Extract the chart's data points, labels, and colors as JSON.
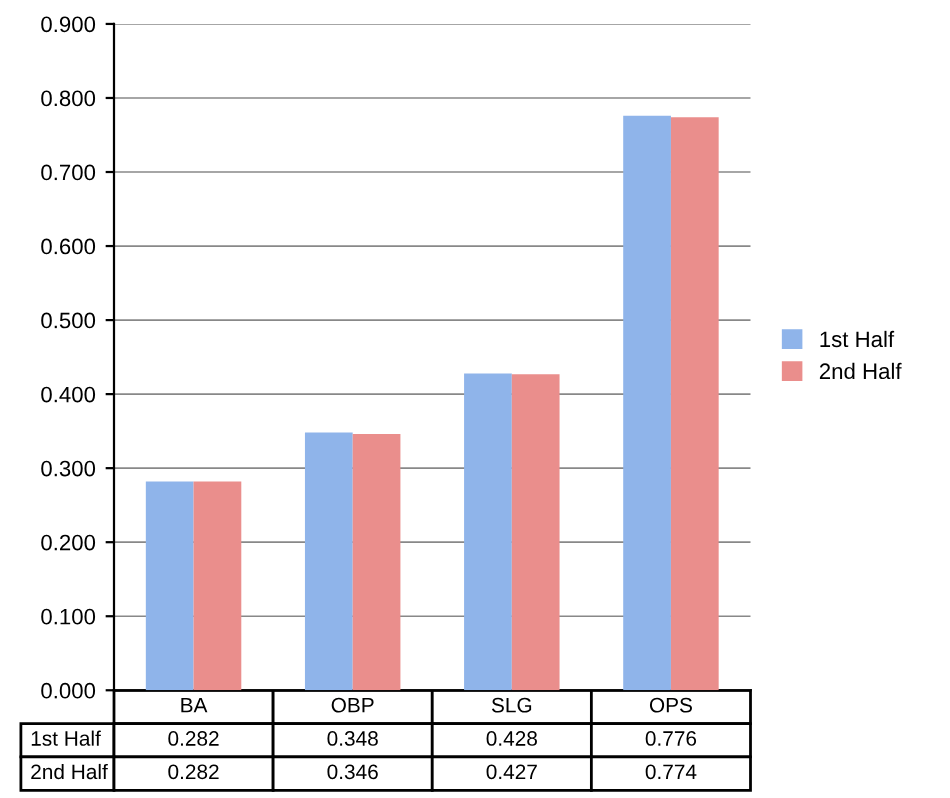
{
  "chart_data": {
    "type": "bar",
    "categories": [
      "BA",
      "OBP",
      "SLG",
      "OPS"
    ],
    "series": [
      {
        "name": "1st Half",
        "color": "#8fb4ea",
        "values": [
          0.282,
          0.348,
          0.428,
          0.776
        ]
      },
      {
        "name": "2nd Half",
        "color": "#ea8e8c",
        "values": [
          0.282,
          0.346,
          0.427,
          0.774
        ]
      }
    ],
    "ylim": [
      0,
      0.9
    ],
    "yticks": [
      {
        "value": 0,
        "label": "0.000"
      },
      {
        "value": 0.1,
        "label": "0.100"
      },
      {
        "value": 0.2,
        "label": "0.200"
      },
      {
        "value": 0.3,
        "label": "0.300"
      },
      {
        "value": 0.4,
        "label": "0.400"
      },
      {
        "value": 0.5,
        "label": "0.500"
      },
      {
        "value": 0.6,
        "label": "0.600"
      },
      {
        "value": 0.7,
        "label": "0.700"
      },
      {
        "value": 0.8,
        "label": "0.800"
      },
      {
        "value": 0.9,
        "label": "0.900"
      }
    ],
    "grid": "y",
    "legend": "right",
    "data_labels": true
  }
}
